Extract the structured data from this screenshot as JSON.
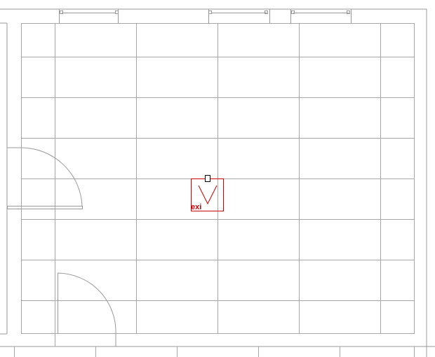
{
  "drawing": {
    "exit_symbol": {
      "label": "exi",
      "color": "#cc0000"
    },
    "colors": {
      "background": "#ffffff",
      "wall": "#9a9a9a",
      "grid": "#a8a8a8",
      "door": "#9a9a9a",
      "marker": "#000000"
    },
    "icons": [
      "exit-sign-icon",
      "door-swing-icon",
      "window-icon",
      "selection-grip-icon"
    ]
  }
}
